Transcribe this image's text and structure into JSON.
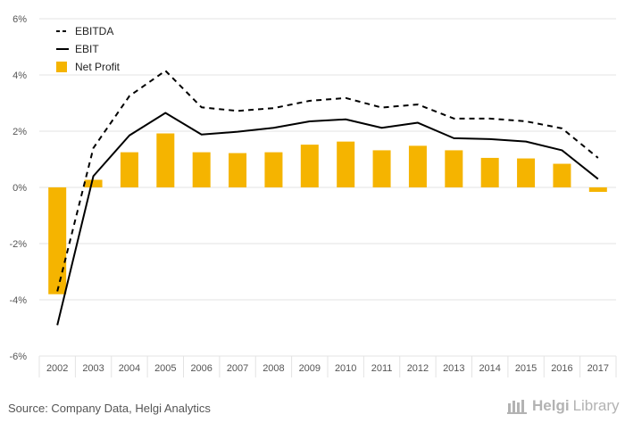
{
  "chart_data": {
    "type": "bar",
    "categories": [
      "2002",
      "2003",
      "2004",
      "2005",
      "2006",
      "2007",
      "2008",
      "2009",
      "2010",
      "2011",
      "2012",
      "2013",
      "2014",
      "2015",
      "2016",
      "2017"
    ],
    "ylim": [
      -6,
      6
    ],
    "yticks": [
      6,
      4,
      2,
      0,
      -2,
      -4,
      -6
    ],
    "ytick_labels": [
      "6%",
      "4%",
      "2%",
      "0%",
      "-2%",
      "-4%",
      "-6%"
    ],
    "grid": true,
    "legend_position": "top-left",
    "series": [
      {
        "name": "EBITDA",
        "type": "line",
        "style": "dashed",
        "color": "#000000",
        "values": [
          -3.7,
          1.4,
          3.25,
          4.15,
          2.85,
          2.72,
          2.82,
          3.08,
          3.18,
          2.84,
          2.95,
          2.45,
          2.45,
          2.35,
          2.1,
          1.05
        ]
      },
      {
        "name": "EBIT",
        "type": "line",
        "style": "solid",
        "color": "#000000",
        "values": [
          -4.9,
          0.4,
          1.85,
          2.65,
          1.88,
          1.98,
          2.12,
          2.35,
          2.42,
          2.12,
          2.3,
          1.75,
          1.72,
          1.63,
          1.32,
          0.3
        ]
      },
      {
        "name": "Net Profit",
        "type": "bar",
        "color": "#f5b400",
        "values": [
          -3.8,
          0.27,
          1.25,
          1.92,
          1.25,
          1.22,
          1.25,
          1.52,
          1.63,
          1.32,
          1.48,
          1.32,
          1.05,
          1.03,
          0.84,
          -0.16
        ]
      }
    ]
  },
  "footer": {
    "source": "Source: Company Data, Helgi Analytics",
    "brand_bold": "Helgi",
    "brand_light": "Library"
  },
  "colors": {
    "bar": "#f5b400",
    "grid": "#e3e3e3",
    "axis_text": "#555555"
  }
}
